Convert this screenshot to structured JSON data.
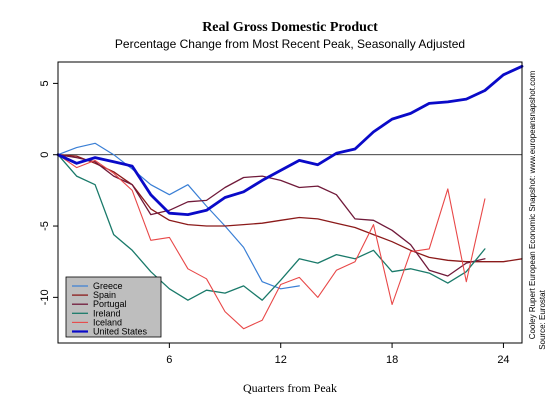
{
  "chart_data": {
    "type": "line",
    "title": "Real Gross Domestic Product",
    "subtitle": "Percentage Change from Most Recent Peak, Seasonally Adjusted",
    "xlabel": "Quarters from Peak",
    "ylabel": "",
    "xlim": [
      0,
      25
    ],
    "ylim": [
      -13.2,
      6.5
    ],
    "x_ticks": [
      6,
      12,
      18,
      24
    ],
    "y_ticks": [
      5,
      0,
      -5,
      -10
    ],
    "zero_line": true,
    "grid": false,
    "legend_position": "bottom-left",
    "notes": [
      "Cooley Rupert European Economic Snapshot: www.europeansnapshot.com",
      "Source: Eurostat"
    ],
    "series": [
      {
        "name": "Greece",
        "color": "#3a7fd5",
        "width": 1.2,
        "x": [
          0,
          1,
          2,
          3,
          4,
          5,
          6,
          7,
          8,
          9,
          10,
          11,
          12,
          13
        ],
        "y": [
          0,
          0.5,
          0.8,
          0,
          -1,
          -2.1,
          -2.8,
          -2.1,
          -3.6,
          -5,
          -6.5,
          -8.9,
          -9.4,
          -9.2
        ]
      },
      {
        "name": "Spain",
        "color": "#8b1a1a",
        "width": 1.3,
        "x": [
          0,
          1,
          2,
          3,
          4,
          5,
          6,
          7,
          8,
          9,
          10,
          11,
          12,
          13,
          14,
          15,
          16,
          17,
          18,
          19,
          20,
          21,
          22,
          23,
          24,
          25
        ],
        "y": [
          0,
          -0.1,
          -0.6,
          -1.2,
          -2.1,
          -3.8,
          -4.6,
          -4.9,
          -5,
          -5,
          -4.9,
          -4.8,
          -4.6,
          -4.4,
          -4.5,
          -4.8,
          -5.1,
          -5.6,
          -6.1,
          -6.7,
          -7.2,
          -7.4,
          -7.5,
          -7.5,
          -7.5,
          -7.3
        ]
      },
      {
        "name": "Portugal",
        "color": "#701a3a",
        "width": 1.3,
        "x": [
          0,
          1,
          2,
          3,
          4,
          5,
          6,
          7,
          8,
          9,
          10,
          11,
          12,
          13,
          14,
          15,
          16,
          17,
          18,
          19,
          20,
          21,
          22,
          23
        ],
        "y": [
          0,
          -0.2,
          -0.5,
          -1.5,
          -2.1,
          -4.2,
          -3.9,
          -3.3,
          -3.2,
          -2.3,
          -1.6,
          -1.5,
          -1.8,
          -2.3,
          -2.2,
          -2.8,
          -4.5,
          -4.6,
          -5.3,
          -6.3,
          -8.1,
          -8.5,
          -7.6,
          -7.3
        ]
      },
      {
        "name": "Ireland",
        "color": "#1a7a6a",
        "width": 1.3,
        "x": [
          0,
          1,
          2,
          3,
          4,
          5,
          6,
          7,
          8,
          9,
          10,
          11,
          12,
          13,
          14,
          15,
          16,
          17,
          18,
          19,
          20,
          21,
          22,
          23
        ],
        "y": [
          0,
          -1.5,
          -2.1,
          -5.6,
          -6.7,
          -8.2,
          -9.4,
          -10.2,
          -9.5,
          -9.7,
          -9.2,
          -10.2,
          -8.8,
          -7.3,
          -7.6,
          -7.0,
          -7.3,
          -6.7,
          -8.2,
          -8.0,
          -8.3,
          -9.0,
          -8.2,
          -6.6
        ]
      },
      {
        "name": "Iceland",
        "color": "#e84848",
        "width": 1.1,
        "x": [
          0,
          1,
          2,
          3,
          4,
          5,
          6,
          7,
          8,
          9,
          10,
          11,
          12,
          13,
          14,
          15,
          16,
          17,
          18,
          19,
          20,
          21,
          22,
          23
        ],
        "y": [
          0,
          -0.9,
          -0.4,
          -1.3,
          -2.5,
          -6.0,
          -5.8,
          -8.0,
          -8.7,
          -11.0,
          -12.2,
          -11.6,
          -9.1,
          -8.6,
          -10.0,
          -8.1,
          -7.5,
          -4.9,
          -10.5,
          -6.8,
          -6.6,
          -2.4,
          -8.9,
          -3.1
        ]
      },
      {
        "name": "United States",
        "color": "#0a0ac8",
        "width": 2.8,
        "x": [
          0,
          1,
          2,
          3,
          4,
          5,
          6,
          7,
          8,
          9,
          10,
          11,
          12,
          13,
          14,
          15,
          16,
          17,
          18,
          19,
          20,
          21,
          22,
          23,
          24,
          25
        ],
        "y": [
          0,
          -0.6,
          -0.2,
          -0.5,
          -0.8,
          -2.8,
          -4.1,
          -4.2,
          -3.9,
          -3.0,
          -2.6,
          -1.8,
          -1.1,
          -0.4,
          -0.7,
          0.1,
          0.4,
          1.6,
          2.5,
          2.9,
          3.6,
          3.7,
          3.9,
          4.5,
          5.6,
          6.2
        ]
      }
    ]
  }
}
